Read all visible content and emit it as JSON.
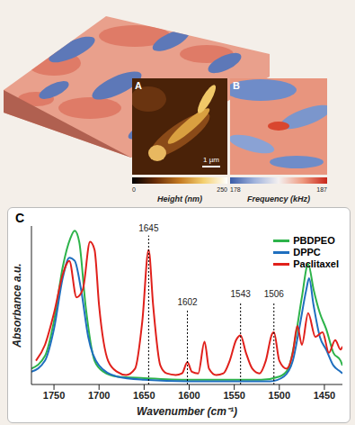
{
  "chart_data": [
    {
      "type": "image",
      "panel": "A",
      "scale_bar": "1 µm",
      "colorbar": {
        "label": "Height (nm)",
        "range": [
          0,
          250
        ],
        "ticks": [
          0,
          250
        ]
      }
    },
    {
      "type": "image",
      "panel": "B",
      "colorbar": {
        "label": "Frequency (kHz)",
        "range": [
          178,
          187
        ],
        "ticks": [
          178,
          187
        ]
      }
    },
    {
      "type": "line",
      "panel": "C",
      "x_label": "Wavenumber (cm⁻¹)",
      "y_label": "Absorbance a.u.",
      "xlim": [
        1775,
        1430
      ],
      "xticks": [
        1750,
        1700,
        1650,
        1600,
        1550,
        1500,
        1450
      ],
      "ylim": [
        0,
        1
      ],
      "tick_labels": "x",
      "legend": "upper right",
      "series": [
        {
          "name": "PBDPEO",
          "color": "#2db34a",
          "x": [
            1775,
            1760,
            1750,
            1740,
            1732,
            1727,
            1722,
            1715,
            1705,
            1695,
            1680,
            1650,
            1600,
            1550,
            1520,
            1500,
            1490,
            1482,
            1475,
            1468,
            1462,
            1455,
            1448,
            1440,
            1432,
            1430
          ],
          "values": [
            0.1,
            0.18,
            0.4,
            0.75,
            0.92,
            0.97,
            0.9,
            0.5,
            0.15,
            0.08,
            0.05,
            0.04,
            0.03,
            0.03,
            0.03,
            0.05,
            0.1,
            0.3,
            0.55,
            0.76,
            0.6,
            0.45,
            0.35,
            0.2,
            0.15,
            0.12
          ]
        },
        {
          "name": "DPPC",
          "color": "#1f6fbf",
          "x": [
            1775,
            1760,
            1750,
            1740,
            1733,
            1727,
            1720,
            1712,
            1700,
            1680,
            1650,
            1600,
            1550,
            1510,
            1495,
            1485,
            1478,
            1470,
            1467,
            1462,
            1455,
            1448,
            1440,
            1432,
            1430
          ],
          "values": [
            0.08,
            0.15,
            0.35,
            0.68,
            0.8,
            0.78,
            0.6,
            0.3,
            0.12,
            0.05,
            0.03,
            0.02,
            0.02,
            0.02,
            0.05,
            0.15,
            0.35,
            0.6,
            0.67,
            0.5,
            0.3,
            0.22,
            0.12,
            0.08,
            0.07
          ]
        },
        {
          "name": "Paclitaxel",
          "color": "#e0201b",
          "x": [
            1770,
            1760,
            1750,
            1740,
            1733,
            1725,
            1718,
            1710,
            1705,
            1700,
            1690,
            1680,
            1670,
            1660,
            1652,
            1645,
            1640,
            1632,
            1625,
            1615,
            1608,
            1602,
            1597,
            1590,
            1583,
            1578,
            1570,
            1562,
            1555,
            1548,
            1543,
            1537,
            1530,
            1522,
            1515,
            1508,
            1506,
            1500,
            1492,
            1485,
            1480,
            1475,
            1468,
            1460,
            1452,
            1445,
            1438,
            1432,
            1430
          ],
          "values": [
            0.15,
            0.25,
            0.45,
            0.7,
            0.78,
            0.55,
            0.6,
            0.9,
            0.85,
            0.5,
            0.15,
            0.08,
            0.06,
            0.1,
            0.4,
            0.85,
            0.5,
            0.12,
            0.07,
            0.06,
            0.07,
            0.14,
            0.08,
            0.07,
            0.27,
            0.1,
            0.06,
            0.07,
            0.15,
            0.28,
            0.31,
            0.2,
            0.1,
            0.07,
            0.15,
            0.32,
            0.33,
            0.15,
            0.1,
            0.2,
            0.37,
            0.25,
            0.45,
            0.3,
            0.33,
            0.2,
            0.28,
            0.22,
            0.24
          ]
        }
      ],
      "annotations": [
        {
          "x": 1645,
          "y": 0.94,
          "label": "1645"
        },
        {
          "x": 1602,
          "y": 0.47,
          "label": "1602"
        },
        {
          "x": 1543,
          "y": 0.52,
          "label": "1543"
        },
        {
          "x": 1506,
          "y": 0.52,
          "label": "1506"
        }
      ]
    }
  ]
}
